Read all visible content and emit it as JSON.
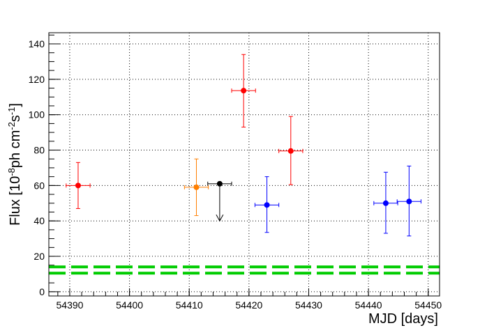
{
  "chart_data": {
    "type": "scatter",
    "xlabel": "MJD [days]",
    "ylabel": [
      "Flux [10",
      "-8",
      "ph cm",
      "-2",
      "s",
      "-1",
      "]"
    ],
    "xlim": [
      54386.5,
      54451.9
    ],
    "xticks": [
      54390,
      54400,
      54410,
      54420,
      54430,
      54440,
      54450
    ],
    "ylim": [
      -2.4,
      146.3
    ],
    "yticks": [
      0,
      20,
      40,
      60,
      80,
      100,
      120,
      140
    ],
    "grid": true,
    "series": [
      {
        "color": "#ff0000",
        "x": [
          54391.4,
          54419.1,
          54427.0
        ],
        "values": [
          60,
          113.6,
          79.5
        ],
        "xerr": [
          2,
          2,
          2
        ],
        "yerr_low": [
          13,
          20.6,
          19
        ],
        "yerr_high": [
          13,
          20.4,
          19.5
        ]
      },
      {
        "color": "#ff7f00",
        "x": [
          54411.2
        ],
        "values": [
          59
        ],
        "xerr": [
          2
        ],
        "yerr_low": [
          16
        ],
        "yerr_high": [
          16
        ]
      },
      {
        "color": "#000000",
        "x": [
          54415.1
        ],
        "values": [
          61
        ],
        "xerr": [
          2
        ],
        "upper_limit_to": [
          40
        ]
      },
      {
        "color": "#0000ff",
        "x": [
          54423.0,
          54442.9,
          54446.8
        ],
        "values": [
          49,
          50,
          51
        ],
        "xerr": [
          2,
          2,
          2
        ],
        "yerr_low": [
          15.5,
          17,
          19.5
        ],
        "yerr_high": [
          16,
          17.5,
          20
        ]
      }
    ],
    "hlines": [
      {
        "value": 14,
        "color": "#00cc00"
      },
      {
        "value": 10.5,
        "color": "#00cc00"
      }
    ]
  }
}
